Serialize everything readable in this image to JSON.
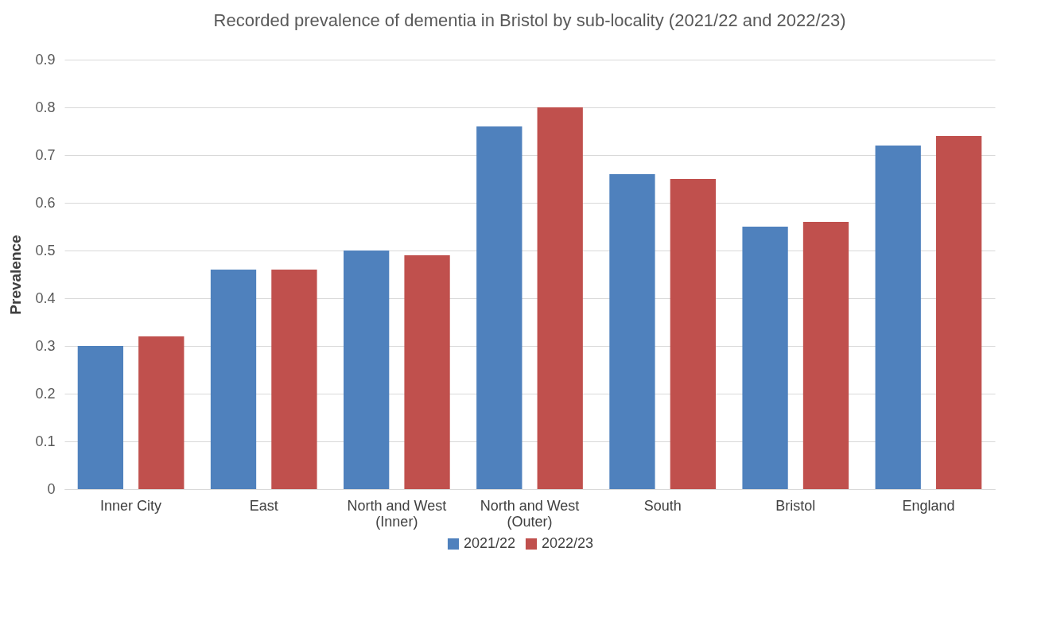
{
  "chart_data": {
    "type": "bar",
    "title": "Recorded prevalence of dementia in Bristol by sub-locality (2021/22 and 2022/23)",
    "ylabel": "Prevalence",
    "categories": [
      "Inner City",
      "East",
      "North and West (Inner)",
      "North and West (Outer)",
      "South",
      "Bristol",
      "England"
    ],
    "series": [
      {
        "name": "2021/22",
        "color": "#4f81bd",
        "values": [
          0.3,
          0.46,
          0.5,
          0.76,
          0.66,
          0.55,
          0.72
        ]
      },
      {
        "name": "2022/23",
        "color": "#c0504d",
        "values": [
          0.32,
          0.46,
          0.49,
          0.8,
          0.65,
          0.56,
          0.74
        ]
      }
    ],
    "ylim": [
      0,
      0.9
    ],
    "yticks": [
      0,
      0.1,
      0.2,
      0.3,
      0.4,
      0.5,
      0.6,
      0.7,
      0.8,
      0.9
    ],
    "grid": "y",
    "legend": "bottom"
  }
}
